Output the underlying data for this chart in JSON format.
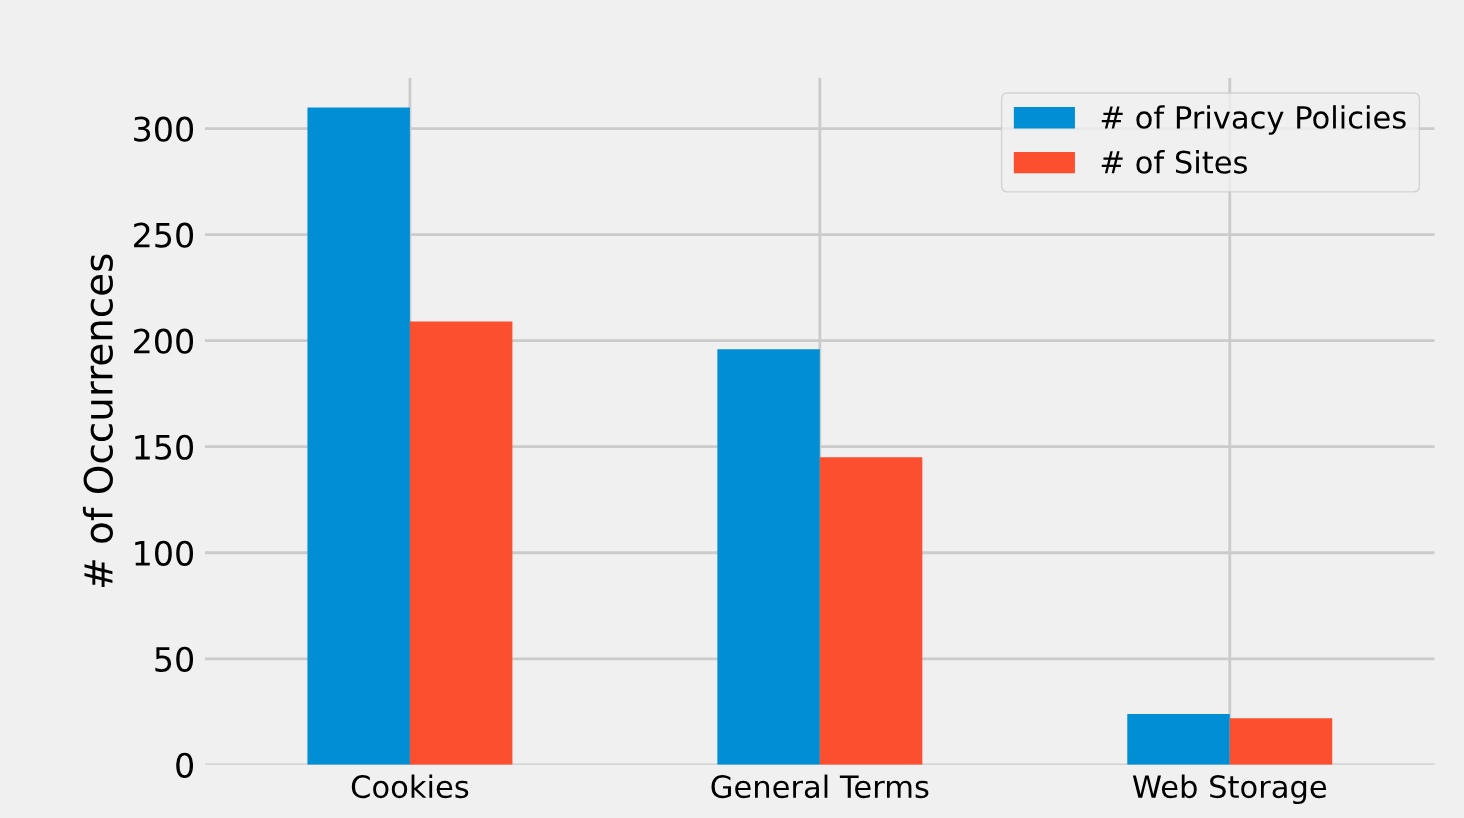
{
  "chart_data": {
    "type": "bar",
    "ylabel": "# of Occurrences",
    "categories": [
      "Cookies",
      "General Terms",
      "Web Storage"
    ],
    "series": [
      {
        "name": "# of Privacy Policies",
        "color": "#008fd5",
        "values": [
          310,
          196,
          24
        ]
      },
      {
        "name": "# of Sites",
        "color": "#fc4f30",
        "values": [
          209,
          145,
          22
        ]
      }
    ],
    "ylim": [
      0,
      324
    ],
    "yticks": [
      0,
      50,
      100,
      150,
      200,
      250,
      300
    ],
    "grid": true,
    "legend": "top right"
  }
}
